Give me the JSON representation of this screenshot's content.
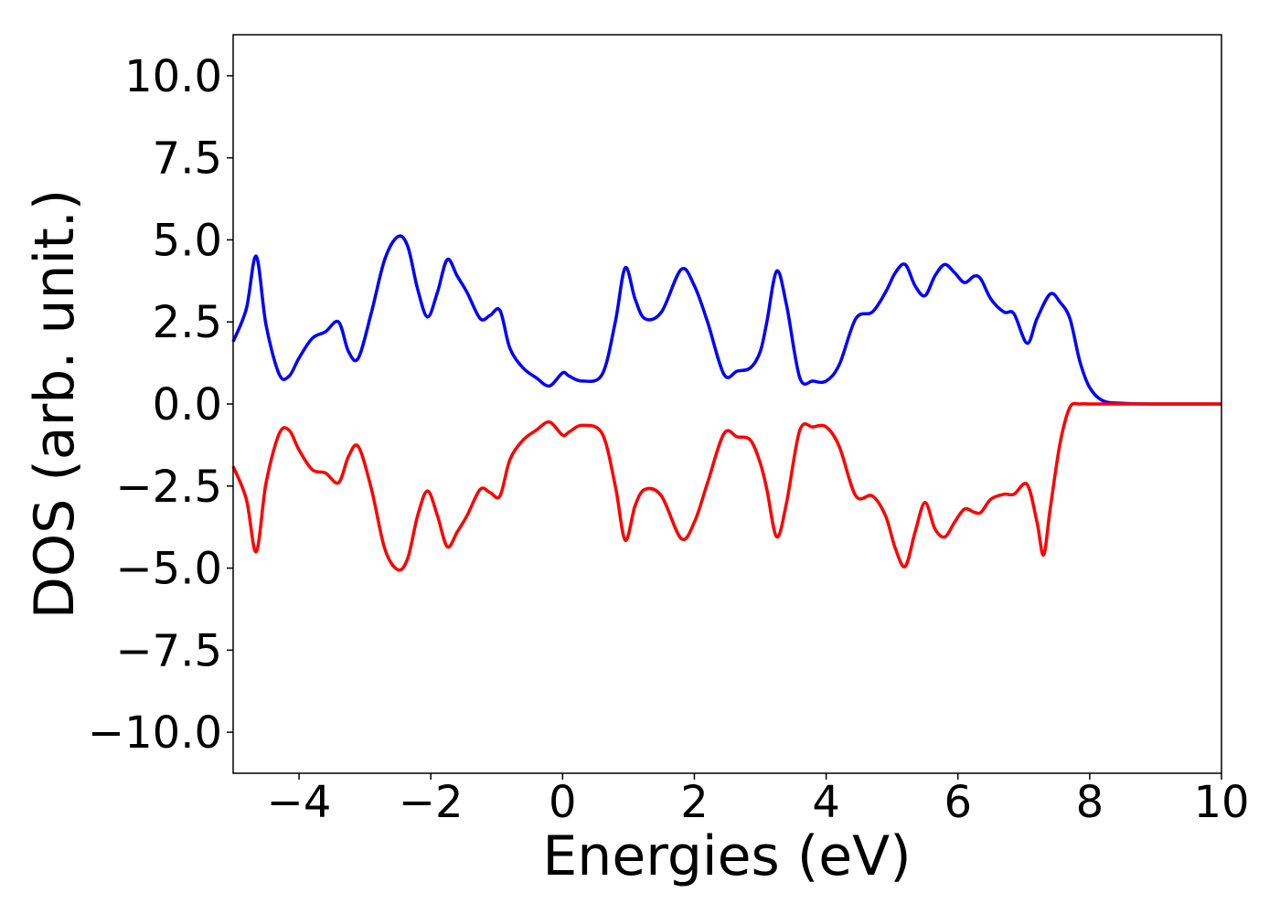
{
  "chart_data": {
    "type": "line",
    "title": "",
    "xlabel": "Energies (eV)",
    "ylabel": "DOS (arb. unit.)",
    "xlim": [
      -5,
      10
    ],
    "ylim": [
      -11.25,
      11.25
    ],
    "xticks": [
      -4,
      -2,
      0,
      2,
      4,
      6,
      8,
      10
    ],
    "xtick_labels": [
      "−4",
      "−2",
      "0",
      "2",
      "4",
      "6",
      "8",
      "10"
    ],
    "yticks": [
      10,
      7.5,
      5,
      2.5,
      0,
      -2.5,
      -5,
      -7.5,
      -10
    ],
    "ytick_labels": [
      "10.0",
      "7.5",
      "5.0",
      "2.5",
      "0.0",
      "−2.5",
      "−5.0",
      "−7.5",
      "−10.0"
    ],
    "grid": false,
    "legend": "none",
    "series": [
      {
        "color": "#0000ff",
        "x": [
          -5.0,
          -4.8,
          -4.65,
          -4.5,
          -4.3,
          -4.15,
          -4.0,
          -3.8,
          -3.6,
          -3.4,
          -3.25,
          -3.1,
          -2.9,
          -2.7,
          -2.5,
          -2.35,
          -2.2,
          -2.05,
          -1.9,
          -1.75,
          -1.6,
          -1.45,
          -1.25,
          -1.1,
          -0.95,
          -0.8,
          -0.6,
          -0.4,
          -0.2,
          0.0,
          0.1,
          0.3,
          0.6,
          0.8,
          0.95,
          1.1,
          1.25,
          1.5,
          1.8,
          2.0,
          2.2,
          2.45,
          2.65,
          2.85,
          3.0,
          3.1,
          3.25,
          3.4,
          3.6,
          3.8,
          4.0,
          4.2,
          4.45,
          4.7,
          4.9,
          5.05,
          5.2,
          5.35,
          5.5,
          5.65,
          5.8,
          5.95,
          6.1,
          6.25,
          6.35,
          6.5,
          6.7,
          6.85,
          7.05,
          7.2,
          7.4,
          7.55,
          7.7,
          7.85,
          8.0,
          8.2,
          8.5,
          9.0,
          10.0
        ],
        "y": [
          1.9,
          2.9,
          4.5,
          2.4,
          0.9,
          0.85,
          1.4,
          2.0,
          2.2,
          2.5,
          1.6,
          1.4,
          2.8,
          4.4,
          5.1,
          4.8,
          3.5,
          2.65,
          3.4,
          4.4,
          3.9,
          3.4,
          2.6,
          2.7,
          2.85,
          1.7,
          1.1,
          0.8,
          0.55,
          0.95,
          0.85,
          0.7,
          0.9,
          2.5,
          4.15,
          3.2,
          2.6,
          2.8,
          4.1,
          3.6,
          2.5,
          0.9,
          1.0,
          1.1,
          1.6,
          2.5,
          4.05,
          3.0,
          0.8,
          0.7,
          0.7,
          1.2,
          2.6,
          2.8,
          3.4,
          4.0,
          4.25,
          3.6,
          3.3,
          3.9,
          4.25,
          4.0,
          3.7,
          3.9,
          3.8,
          3.2,
          2.8,
          2.75,
          1.85,
          2.6,
          3.35,
          3.1,
          2.6,
          1.3,
          0.5,
          0.1,
          0.02,
          0.0,
          0.0
        ]
      },
      {
        "color": "#ff0000",
        "x": [
          -5.0,
          -4.8,
          -4.65,
          -4.5,
          -4.3,
          -4.15,
          -4.0,
          -3.8,
          -3.6,
          -3.4,
          -3.25,
          -3.1,
          -2.9,
          -2.7,
          -2.5,
          -2.35,
          -2.2,
          -2.05,
          -1.9,
          -1.75,
          -1.6,
          -1.45,
          -1.25,
          -1.1,
          -0.95,
          -0.8,
          -0.6,
          -0.4,
          -0.2,
          0.0,
          0.1,
          0.3,
          0.6,
          0.8,
          0.95,
          1.1,
          1.25,
          1.5,
          1.8,
          2.0,
          2.2,
          2.45,
          2.65,
          2.85,
          3.0,
          3.1,
          3.25,
          3.4,
          3.6,
          3.8,
          4.0,
          4.2,
          4.45,
          4.7,
          4.9,
          5.05,
          5.2,
          5.35,
          5.5,
          5.65,
          5.8,
          5.95,
          6.1,
          6.25,
          6.35,
          6.5,
          6.7,
          6.85,
          7.05,
          7.2,
          7.3,
          7.4,
          7.55,
          7.7,
          7.85,
          8.0,
          8.2,
          8.5,
          9.0,
          10.0
        ],
        "y": [
          -1.9,
          -2.9,
          -4.5,
          -2.4,
          -0.9,
          -0.8,
          -1.4,
          -2.0,
          -2.1,
          -2.4,
          -1.6,
          -1.3,
          -2.6,
          -4.4,
          -5.05,
          -4.7,
          -3.4,
          -2.65,
          -3.4,
          -4.35,
          -3.9,
          -3.4,
          -2.6,
          -2.7,
          -2.8,
          -1.7,
          -1.1,
          -0.8,
          -0.55,
          -0.95,
          -0.85,
          -0.65,
          -0.9,
          -2.5,
          -4.15,
          -3.1,
          -2.6,
          -2.8,
          -4.1,
          -3.6,
          -2.4,
          -0.9,
          -1.0,
          -1.1,
          -1.8,
          -2.6,
          -4.05,
          -3.0,
          -0.8,
          -0.7,
          -0.7,
          -1.3,
          -2.8,
          -2.8,
          -3.4,
          -4.4,
          -4.95,
          -3.9,
          -3.0,
          -3.8,
          -4.05,
          -3.6,
          -3.2,
          -3.3,
          -3.3,
          -2.9,
          -2.75,
          -2.75,
          -2.45,
          -3.6,
          -4.6,
          -3.2,
          -1.2,
          -0.1,
          0.0,
          0.0,
          0.0,
          0.0,
          0.0,
          0.0
        ]
      }
    ]
  }
}
